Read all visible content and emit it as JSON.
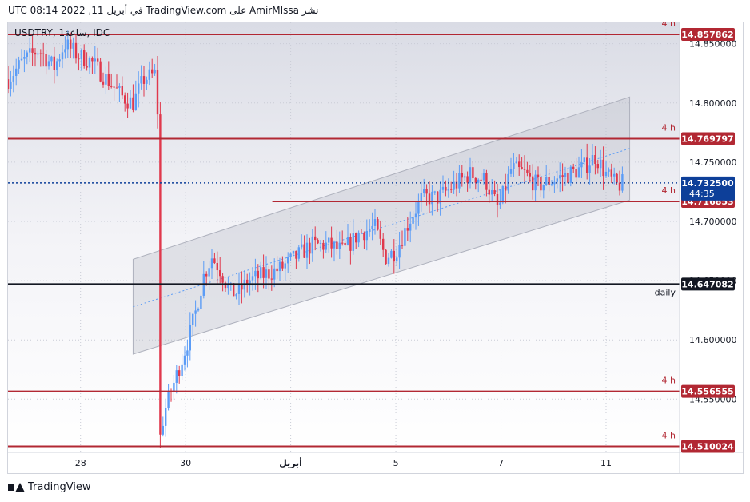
{
  "header": {
    "published_text": "نشر AmirMIssa على TradingView.com في أبريل 11, 2022 08:14 UTC"
  },
  "footer": {
    "brand": "TradingView"
  },
  "chart_data": {
    "type": "candlestick",
    "symbol_label": "USDTRY, 1ساعة, IDC",
    "x_ticks": [
      {
        "label": "28",
        "pos": 0.0
      },
      {
        "label": "30",
        "pos": 2.0
      },
      {
        "label": "أبريل",
        "pos": 4.0
      },
      {
        "label": "5",
        "pos": 6.0
      },
      {
        "label": "7",
        "pos": 8.0
      },
      {
        "label": "11",
        "pos": 10.0
      }
    ],
    "x_range": [
      -1.38,
      11.4
    ],
    "y_ticks": [
      14.85,
      14.8,
      14.75,
      14.7,
      14.65,
      14.6,
      14.55
    ],
    "y_tick_labels": [
      "14.850000",
      "14.800000",
      "14.750000",
      "14.700000",
      "14.650000",
      "14.600000",
      "14.550000"
    ],
    "ylim": [
      14.505,
      14.868
    ],
    "current_price": {
      "value": "14.732500",
      "countdown": "44:35",
      "price": 14.7325,
      "color": "#0d3f99"
    },
    "levels": [
      {
        "price": 14.857862,
        "label": "14.857862",
        "tag": "4 h",
        "color": "#b22833",
        "x_start": -1.38
      },
      {
        "price": 14.769797,
        "label": "14.769797",
        "tag": "4 h",
        "color": "#b22833",
        "x_start": -1.38
      },
      {
        "price": 14.716853,
        "label": "14.716853",
        "tag": "4 h",
        "color": "#b22833",
        "x_start": 3.65
      },
      {
        "price": 14.647082,
        "label": "14.647082",
        "tag": "daily",
        "color": "#131722",
        "x_start": -1.38
      },
      {
        "price": 14.556555,
        "label": "14.556555",
        "tag": "4 h",
        "color": "#b22833",
        "x_start": -1.38
      },
      {
        "price": 14.510024,
        "label": "14.510024",
        "tag": "4 h",
        "color": "#b22833",
        "x_start": -1.38
      }
    ],
    "channel": {
      "lower_start": [
        1.0,
        14.588
      ],
      "lower_end": [
        10.45,
        14.718
      ],
      "upper_start": [
        1.0,
        14.668
      ],
      "upper_end": [
        10.45,
        14.805
      ],
      "mid_color": "#5b9cf6"
    },
    "price_path": [
      [
        -1.38,
        14.82
      ],
      [
        -1.1,
        14.835
      ],
      [
        -0.8,
        14.845
      ],
      [
        -0.5,
        14.83
      ],
      [
        -0.3,
        14.85
      ],
      [
        -0.05,
        14.84
      ],
      [
        0.2,
        14.835
      ],
      [
        0.5,
        14.82
      ],
      [
        0.8,
        14.805
      ],
      [
        1.0,
        14.8
      ],
      [
        1.2,
        14.82
      ],
      [
        1.45,
        14.825
      ],
      [
        1.5,
        14.72
      ],
      [
        1.52,
        14.52
      ],
      [
        1.6,
        14.54
      ],
      [
        1.75,
        14.56
      ],
      [
        1.9,
        14.58
      ],
      [
        2.05,
        14.6
      ],
      [
        2.2,
        14.625
      ],
      [
        2.35,
        14.655
      ],
      [
        2.5,
        14.67
      ],
      [
        2.65,
        14.66
      ],
      [
        2.85,
        14.64
      ],
      [
        3.0,
        14.64
      ],
      [
        3.2,
        14.65
      ],
      [
        3.5,
        14.655
      ],
      [
        3.8,
        14.66
      ],
      [
        4.1,
        14.67
      ],
      [
        4.4,
        14.68
      ],
      [
        4.7,
        14.68
      ],
      [
        5.0,
        14.675
      ],
      [
        5.3,
        14.69
      ],
      [
        5.6,
        14.695
      ],
      [
        5.8,
        14.67
      ],
      [
        6.0,
        14.675
      ],
      [
        6.25,
        14.7
      ],
      [
        6.5,
        14.72
      ],
      [
        6.8,
        14.72
      ],
      [
        7.1,
        14.73
      ],
      [
        7.4,
        14.74
      ],
      [
        7.7,
        14.735
      ],
      [
        7.95,
        14.71
      ],
      [
        8.2,
        14.745
      ],
      [
        8.45,
        14.74
      ],
      [
        8.7,
        14.73
      ],
      [
        9.0,
        14.735
      ],
      [
        9.3,
        14.74
      ],
      [
        9.55,
        14.745
      ],
      [
        9.8,
        14.755
      ],
      [
        10.0,
        14.74
      ],
      [
        10.2,
        14.73
      ],
      [
        10.35,
        14.7325
      ]
    ],
    "candle_colors": {
      "up": "#5b9cf6",
      "down": "#e0384c"
    }
  }
}
